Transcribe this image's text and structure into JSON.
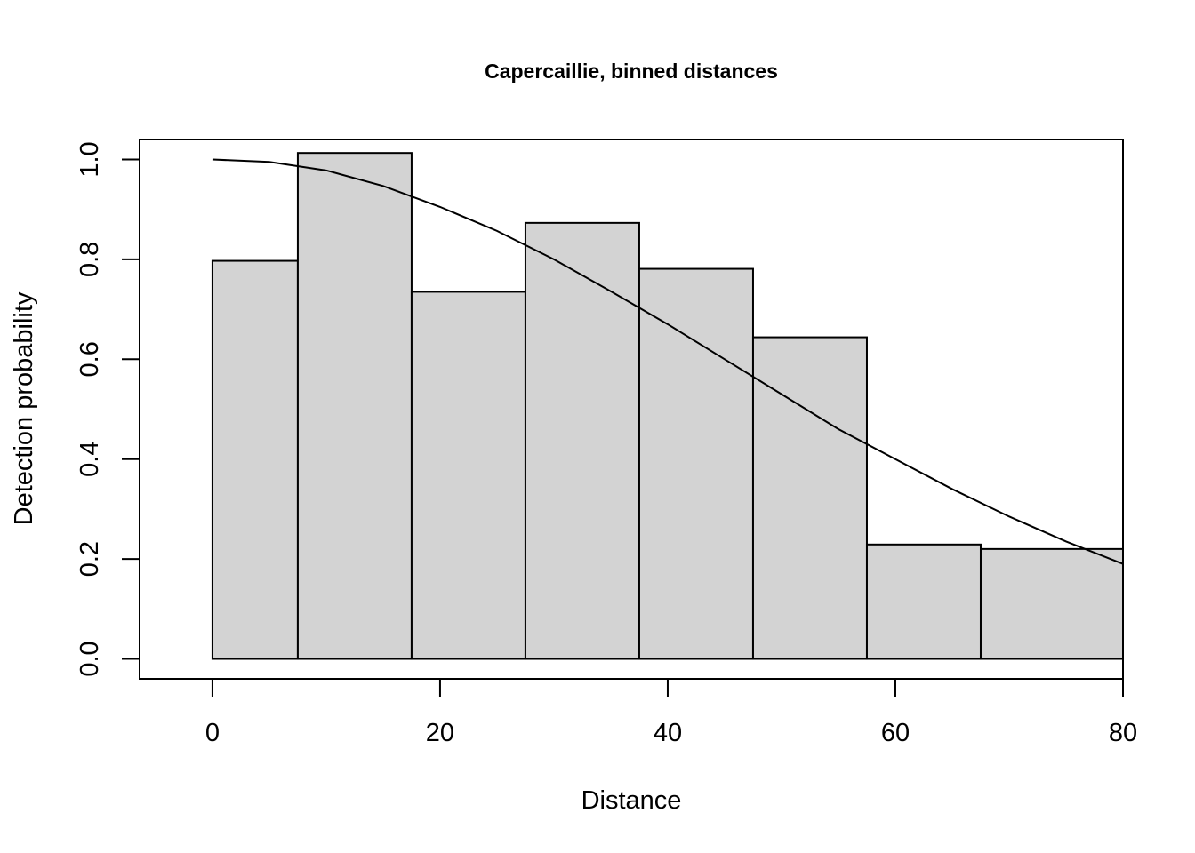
{
  "chart_data": {
    "type": "bar",
    "title": "Capercaillie, binned distances",
    "xlabel": "Distance",
    "ylabel": "Detection probability",
    "xlim": [
      -6.4,
      80
    ],
    "ylim": [
      -0.04,
      1.04
    ],
    "x_ticks": [
      0,
      20,
      40,
      60,
      80
    ],
    "y_ticks": [
      0.0,
      0.2,
      0.4,
      0.6,
      0.8,
      1.0
    ],
    "x_tick_labels": [
      "0",
      "20",
      "40",
      "60",
      "80"
    ],
    "y_tick_labels": [
      "0.0",
      "0.2",
      "0.4",
      "0.6",
      "0.8",
      "1.0"
    ],
    "bins": [
      {
        "from": 0,
        "to": 7.5,
        "value": 0.797
      },
      {
        "from": 7.5,
        "to": 17.5,
        "value": 1.013
      },
      {
        "from": 17.5,
        "to": 27.5,
        "value": 0.735
      },
      {
        "from": 27.5,
        "to": 37.5,
        "value": 0.873
      },
      {
        "from": 37.5,
        "to": 47.5,
        "value": 0.781
      },
      {
        "from": 47.5,
        "to": 57.5,
        "value": 0.644
      },
      {
        "from": 57.5,
        "to": 67.5,
        "value": 0.229
      },
      {
        "from": 67.5,
        "to": 80,
        "value": 0.22
      }
    ],
    "fitted_curve": {
      "x": [
        0,
        5,
        10,
        15,
        20,
        25,
        30,
        35,
        40,
        45,
        50,
        55,
        60,
        65,
        70,
        75,
        80
      ],
      "y": [
        1.0,
        0.995,
        0.978,
        0.947,
        0.905,
        0.857,
        0.8,
        0.736,
        0.67,
        0.6,
        0.53,
        0.46,
        0.4,
        0.34,
        0.285,
        0.235,
        0.19
      ]
    }
  }
}
